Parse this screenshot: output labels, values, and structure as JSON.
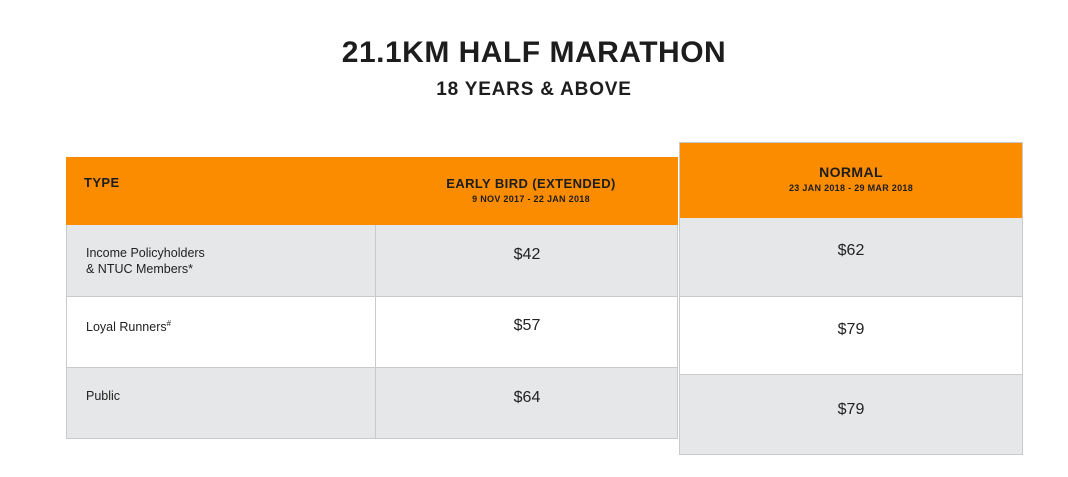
{
  "header": {
    "title": "21.1KM HALF MARATHON",
    "subtitle": "18 YEARS & ABOVE"
  },
  "colors": {
    "accent": "#fb8c00",
    "row_gray": "#e6e7e8",
    "border": "#c9cacc"
  },
  "table": {
    "columns": {
      "type": {
        "label": "TYPE"
      },
      "early_bird": {
        "label": "EARLY BIRD (EXTENDED)",
        "dates": "9 NOV 2017 - 22 JAN 2018"
      },
      "normal": {
        "label": "NORMAL",
        "dates": "23 JAN 2018 - 29 MAR 2018"
      }
    },
    "rows": [
      {
        "type_line1": "Income Policyholders",
        "type_line2": "& NTUC Members*",
        "early_bird": "$42",
        "normal": "$62"
      },
      {
        "type_line1": "Loyal Runners",
        "type_sup": "#",
        "early_bird": "$57",
        "normal": "$79"
      },
      {
        "type_line1": "Public",
        "early_bird": "$64",
        "normal": "$79"
      }
    ]
  }
}
